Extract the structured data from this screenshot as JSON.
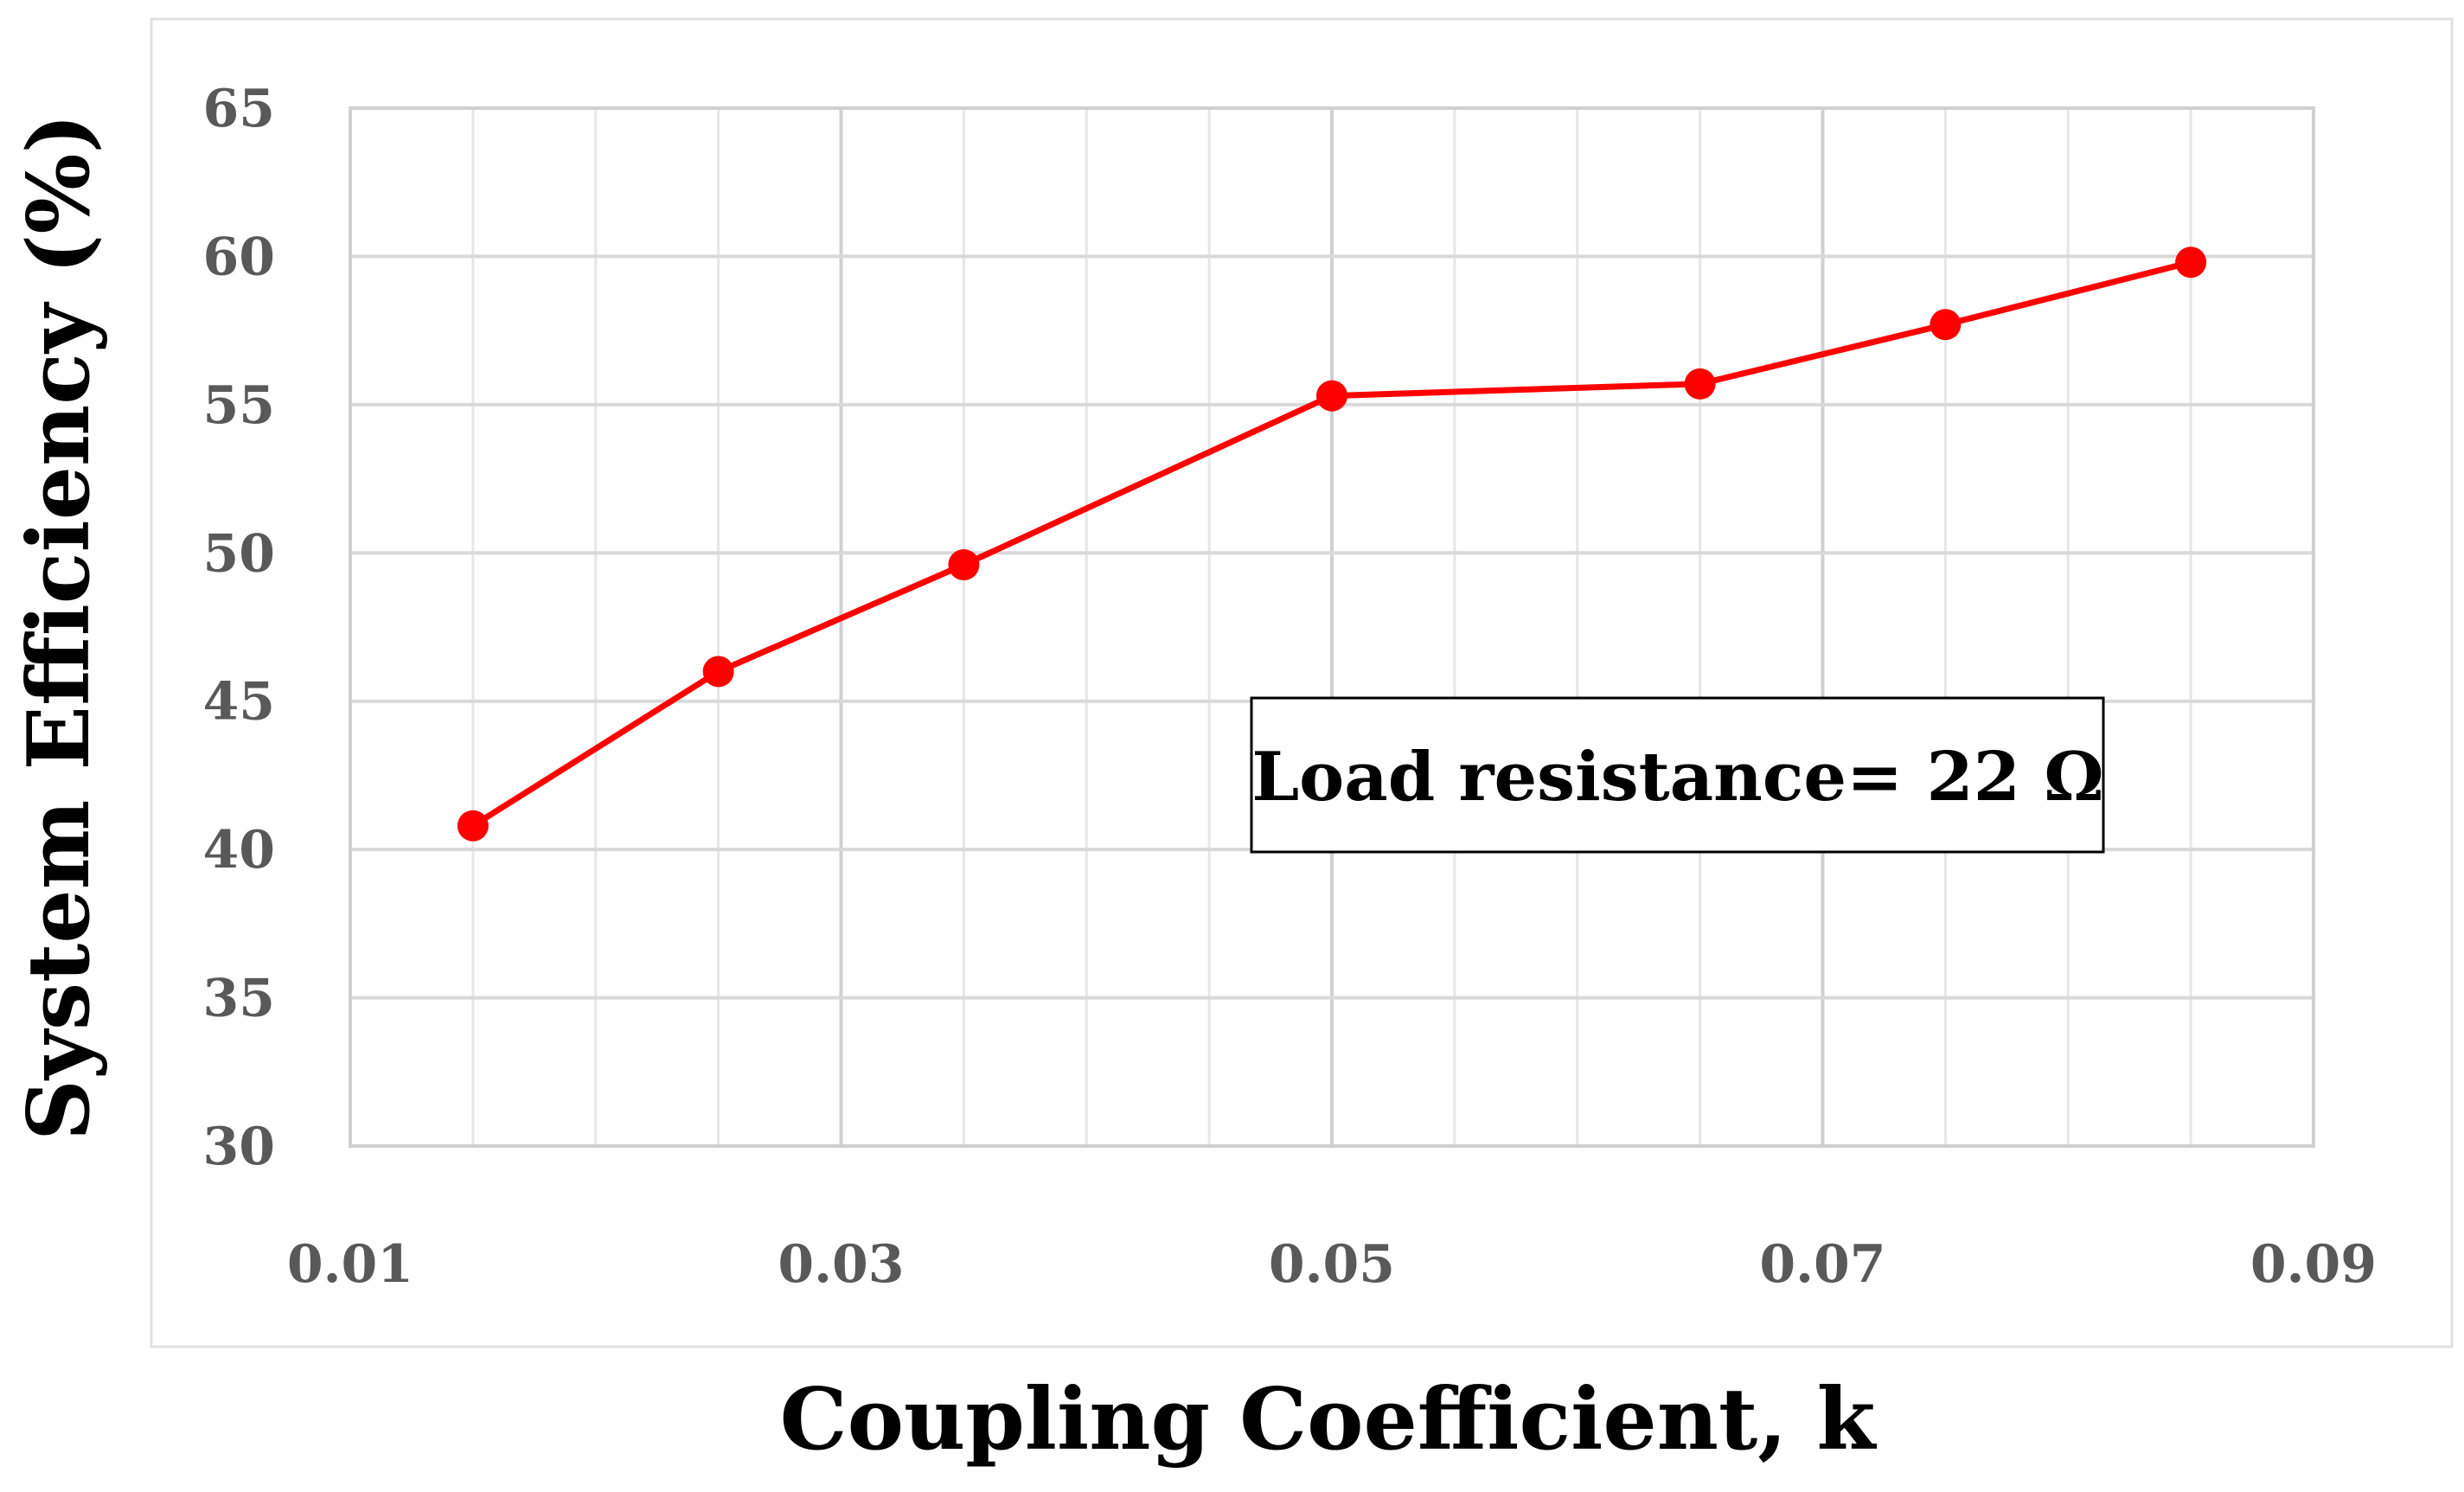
{
  "chart_data": {
    "type": "line",
    "xlabel": "Coupling Coefficient, k",
    "ylabel": "System Efficiency (%)",
    "xlim": [
      0.01,
      0.09
    ],
    "ylim": [
      30,
      65
    ],
    "x_ticks": [
      "0.01",
      "0.03",
      "0.05",
      "0.07",
      "0.09"
    ],
    "y_ticks": [
      "30",
      "35",
      "40",
      "45",
      "50",
      "55",
      "60",
      "65"
    ],
    "grid": true,
    "series": [
      {
        "color": "#ff0000",
        "x": [
          0.015,
          0.025,
          0.035,
          0.05,
          0.065,
          0.075,
          0.085
        ],
        "y": [
          40.8,
          46.0,
          49.6,
          55.3,
          55.7,
          57.7,
          59.8
        ]
      }
    ],
    "annotation": "Load resistance= 22 Ω"
  }
}
